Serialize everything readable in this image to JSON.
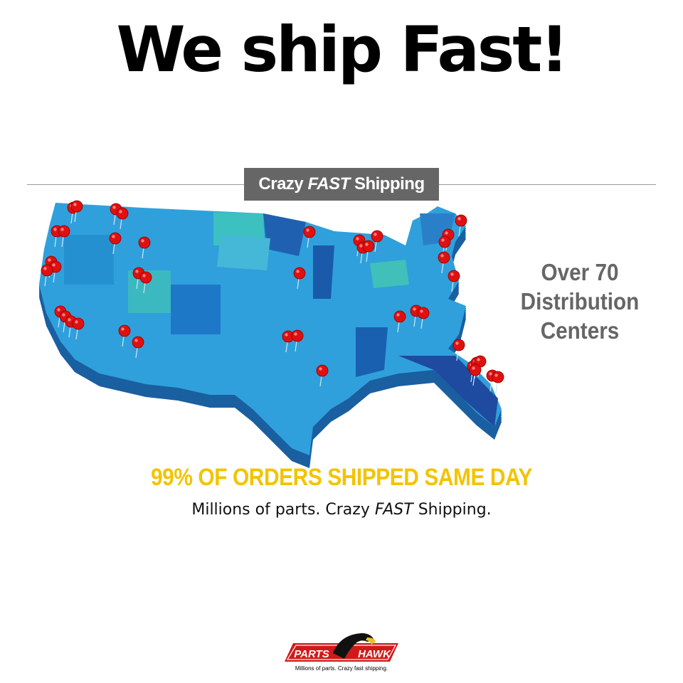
{
  "headline": "We ship Fast!",
  "banner": {
    "prefix": "Crazy",
    "emphasis": "FAST",
    "suffix": "Shipping"
  },
  "distribution": {
    "line1": "Over 70",
    "line2": "Distribution",
    "line3": "Centers"
  },
  "same_day": "99% OF ORDERS SHIPPED SAME DAY",
  "tagline": {
    "prefix": "Millions of parts. Crazy",
    "emphasis": "FAST",
    "suffix": "Shipping."
  },
  "logo": {
    "left": "PARTS",
    "right": "HAWK",
    "slogan": "Millions of parts. Crazy fast shipping."
  },
  "colors": {
    "map_top": "#2fa0dc",
    "map_side": "#1a5fa0",
    "pin": "#e01010",
    "same_day": "#f2c400",
    "banner": "#666666"
  },
  "icons": {
    "pin": "map-pin-icon",
    "logo": "hawk-logo-icon"
  }
}
